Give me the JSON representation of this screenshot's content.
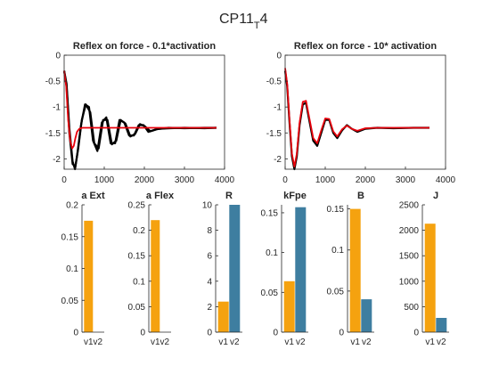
{
  "figure": {
    "title_main": "CP11",
    "title_sub": "T",
    "title_tail": "4"
  },
  "colors": {
    "v1": "#f5a20f",
    "v2": "#3e7ea0",
    "trace_black": "#000000",
    "trace_red": "#e8000b"
  },
  "chart_data": [
    {
      "type": "line",
      "title": "Reflex on force - 0.1*activation",
      "xlim": [
        0,
        4000
      ],
      "ylim": [
        -2.2,
        0
      ],
      "xticks": [
        "0",
        "1000",
        "2000",
        "3000",
        "4000"
      ],
      "yticks": [
        "0",
        "-0.5",
        "-1",
        "-1.5",
        "-2"
      ],
      "xtick_values": [
        0,
        1000,
        2000,
        3000,
        4000
      ],
      "ytick_values": [
        0,
        -0.5,
        -1,
        -1.5,
        -2
      ],
      "series": [
        {
          "color": "black",
          "x": [
            0,
            60,
            130,
            210,
            270,
            330,
            420,
            520,
            620,
            720,
            830,
            940,
            1050,
            1160,
            1270,
            1380,
            1500,
            1620,
            1740,
            1860,
            1980,
            2100,
            2300,
            2600,
            3000,
            3500,
            3800
          ],
          "y": [
            -0.3,
            -0.55,
            -1.4,
            -2.05,
            -2.2,
            -1.9,
            -1.35,
            -0.95,
            -1.0,
            -1.65,
            -1.85,
            -1.3,
            -1.2,
            -1.7,
            -1.7,
            -1.25,
            -1.3,
            -1.55,
            -1.55,
            -1.35,
            -1.35,
            -1.48,
            -1.43,
            -1.4,
            -1.41,
            -1.4,
            -1.4
          ]
        },
        {
          "color": "black",
          "x": [
            0,
            60,
            130,
            210,
            280,
            350,
            440,
            540,
            650,
            750,
            860,
            970,
            1080,
            1190,
            1300,
            1410,
            1530,
            1650,
            1770,
            1890,
            2010,
            2150,
            2350,
            2650,
            3000,
            3500,
            3800
          ],
          "y": [
            -0.3,
            -0.6,
            -1.5,
            -2.1,
            -2.15,
            -1.8,
            -1.25,
            -0.95,
            -1.1,
            -1.7,
            -1.8,
            -1.25,
            -1.25,
            -1.72,
            -1.65,
            -1.25,
            -1.32,
            -1.57,
            -1.52,
            -1.33,
            -1.37,
            -1.47,
            -1.42,
            -1.41,
            -1.4,
            -1.41,
            -1.4
          ]
        },
        {
          "color": "red",
          "x": [
            0,
            50,
            100,
            150,
            200,
            240,
            280,
            320,
            380,
            450,
            550,
            700,
            1000,
            1500,
            2000,
            2500,
            3000,
            3500,
            3800
          ],
          "y": [
            -0.3,
            -0.6,
            -1.25,
            -1.65,
            -1.8,
            -1.75,
            -1.6,
            -1.48,
            -1.42,
            -1.4,
            -1.4,
            -1.4,
            -1.4,
            -1.4,
            -1.4,
            -1.4,
            -1.4,
            -1.4,
            -1.4
          ]
        }
      ]
    },
    {
      "type": "line",
      "title": "Reflex on force - 10* activation",
      "xlim": [
        0,
        4000
      ],
      "ylim": [
        -2.2,
        0
      ],
      "xticks": [
        "0",
        "1000",
        "2000",
        "3000",
        "4000"
      ],
      "yticks": [
        "0",
        "-0.5",
        "-1",
        "-1.5",
        "-2"
      ],
      "xtick_values": [
        0,
        1000,
        2000,
        3000,
        4000
      ],
      "ytick_values": [
        0,
        -0.5,
        -1,
        -1.5,
        -2
      ],
      "series": [
        {
          "color": "black",
          "x": [
            0,
            50,
            110,
            170,
            230,
            290,
            360,
            440,
            520,
            600,
            700,
            800,
            900,
            1000,
            1100,
            1200,
            1300,
            1420,
            1540,
            1660,
            1800,
            2000,
            2300,
            2700,
            3200,
            3600
          ],
          "y": [
            -0.3,
            -0.6,
            -1.3,
            -1.95,
            -2.2,
            -1.95,
            -1.35,
            -0.95,
            -0.92,
            -1.25,
            -1.65,
            -1.75,
            -1.5,
            -1.25,
            -1.25,
            -1.5,
            -1.6,
            -1.45,
            -1.35,
            -1.42,
            -1.48,
            -1.42,
            -1.4,
            -1.41,
            -1.4,
            -1.4
          ]
        },
        {
          "color": "red",
          "x": [
            0,
            50,
            110,
            170,
            230,
            290,
            360,
            440,
            520,
            600,
            700,
            800,
            900,
            1000,
            1100,
            1200,
            1300,
            1420,
            1540,
            1660,
            1800,
            2000,
            2300,
            2700,
            3200,
            3600
          ],
          "y": [
            -0.25,
            -0.55,
            -1.25,
            -1.9,
            -2.15,
            -1.9,
            -1.3,
            -0.9,
            -0.88,
            -1.2,
            -1.6,
            -1.7,
            -1.45,
            -1.22,
            -1.23,
            -1.47,
            -1.57,
            -1.43,
            -1.36,
            -1.42,
            -1.46,
            -1.41,
            -1.4,
            -1.4,
            -1.4,
            -1.4
          ]
        }
      ]
    },
    {
      "type": "bar",
      "title": "a Ext",
      "categories": [
        "v1",
        "v2"
      ],
      "values": [
        0.175,
        0
      ],
      "ylim": [
        0,
        0.2
      ],
      "yticks": [
        "0",
        "0.05",
        "0.1",
        "0.15",
        "0.2"
      ],
      "ytick_values": [
        0,
        0.05,
        0.1,
        0.15,
        0.2
      ]
    },
    {
      "type": "bar",
      "title": "a Flex",
      "categories": [
        "v1",
        "v2"
      ],
      "values": [
        0.22,
        0
      ],
      "ylim": [
        0,
        0.25
      ],
      "yticks": [
        "0",
        "0.05",
        "0.1",
        "0.15",
        "0.2",
        "0.25"
      ],
      "ytick_values": [
        0,
        0.05,
        0.1,
        0.15,
        0.2,
        0.25
      ]
    },
    {
      "type": "bar",
      "title": "R",
      "categories": [
        "v1",
        "v2"
      ],
      "values": [
        2.4,
        10
      ],
      "ylim": [
        0,
        10
      ],
      "yticks": [
        "0",
        "2",
        "4",
        "6",
        "8",
        "10"
      ],
      "ytick_values": [
        0,
        2,
        4,
        6,
        8,
        10
      ]
    },
    {
      "type": "bar",
      "title": "kFpe",
      "categories": [
        "v1",
        "v2"
      ],
      "values": [
        0.064,
        0.157
      ],
      "ylim": [
        0,
        0.16
      ],
      "yticks": [
        "0",
        "0.05",
        "0.1",
        "0.15"
      ],
      "ytick_values": [
        0,
        0.05,
        0.1,
        0.15
      ]
    },
    {
      "type": "bar",
      "title": "B",
      "categories": [
        "v1",
        "v2"
      ],
      "values": [
        0.15,
        0.04
      ],
      "ylim": [
        0,
        0.155
      ],
      "yticks": [
        "0",
        "0.05",
        "0.1",
        "0.15"
      ],
      "ytick_values": [
        0,
        0.05,
        0.1,
        0.15
      ]
    },
    {
      "type": "bar",
      "title": "J",
      "categories": [
        "v1",
        "v2"
      ],
      "values": [
        2130,
        280
      ],
      "ylim": [
        0,
        2500
      ],
      "yticks": [
        "0",
        "500",
        "1000",
        "1500",
        "2000",
        "2500"
      ],
      "ytick_values": [
        0,
        500,
        1000,
        1500,
        2000,
        2500
      ]
    }
  ]
}
